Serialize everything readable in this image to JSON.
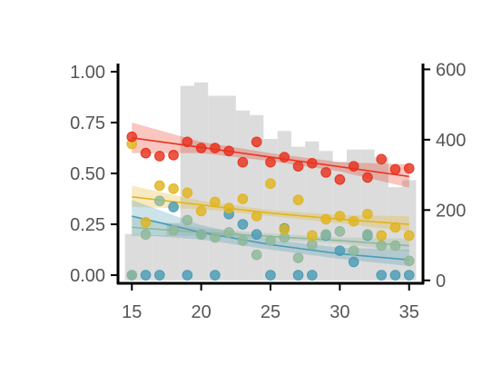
{
  "chart_data": {
    "type": "scatter",
    "title": "",
    "xlabel": "",
    "ylabel": "",
    "y2label": "",
    "grid": false,
    "legend": "none",
    "xlim": [
      14,
      36
    ],
    "ylim": [
      -0.04,
      1.04
    ],
    "y2lim": [
      -8.3,
      616.5
    ],
    "x_ticks": [
      15,
      20,
      25,
      30,
      35
    ],
    "y_ticks": [
      0,
      0.25,
      0.5,
      0.75,
      1.0
    ],
    "y_tick_labels": [
      "0.00",
      "0.25",
      "0.50",
      "0.75",
      "1.00"
    ],
    "y2_ticks": [
      0,
      200,
      400,
      600
    ],
    "y2_tick_labels": [
      "0",
      "200",
      "400",
      "600"
    ],
    "histogram": {
      "axis": "right",
      "color": "#dcdcdc",
      "bin_edges": [
        14.5,
        15.5,
        16.5,
        17.5,
        18.5,
        19.5,
        20.5,
        21.5,
        22.5,
        23.5,
        24.5,
        25.5,
        26.5,
        27.5,
        28.5,
        29.5,
        30.5,
        31.5,
        32.5,
        33.5,
        34.5,
        35.5
      ],
      "counts": [
        132,
        128,
        128,
        163,
        553,
        563,
        525,
        525,
        483,
        470,
        402,
        425,
        380,
        395,
        368,
        337,
        372,
        372,
        350,
        265,
        285
      ]
    },
    "series": [
      {
        "color": "#e8331e",
        "points": [
          [
            15,
            0.68
          ],
          [
            16,
            0.6
          ],
          [
            17,
            0.585
          ],
          [
            18,
            0.59
          ],
          [
            19,
            0.655
          ],
          [
            20,
            0.625
          ],
          [
            21,
            0.625
          ],
          [
            22,
            0.61
          ],
          [
            23,
            0.555
          ],
          [
            24,
            0.655
          ],
          [
            25,
            0.555
          ],
          [
            26,
            0.58
          ],
          [
            27,
            0.535
          ],
          [
            28,
            0.55
          ],
          [
            29,
            0.505
          ],
          [
            30,
            0.47
          ],
          [
            31,
            0.535
          ],
          [
            32,
            0.48
          ],
          [
            33,
            0.57
          ],
          [
            34,
            0.52
          ],
          [
            35,
            0.525
          ]
        ],
        "fit": [
          [
            15,
            0.675
          ],
          [
            20,
            0.628
          ],
          [
            25,
            0.58
          ],
          [
            30,
            0.533
          ],
          [
            35,
            0.485
          ]
        ],
        "band": [
          [
            15,
            0.6,
            0.75
          ],
          [
            20,
            0.6,
            0.655
          ],
          [
            25,
            0.56,
            0.6
          ],
          [
            30,
            0.51,
            0.555
          ],
          [
            35,
            0.43,
            0.545
          ]
        ]
      },
      {
        "color": "#e1b41e",
        "points": [
          [
            15,
            0.645
          ],
          [
            16,
            0.26
          ],
          [
            17,
            0.44
          ],
          [
            18,
            0.425
          ],
          [
            19,
            0.405
          ],
          [
            20,
            0.315
          ],
          [
            21,
            0.36
          ],
          [
            22,
            0.33
          ],
          [
            23,
            0.375
          ],
          [
            24,
            0.29
          ],
          [
            25,
            0.45
          ],
          [
            26,
            0.225
          ],
          [
            27,
            0.37
          ],
          [
            28,
            0.195
          ],
          [
            29,
            0.275
          ],
          [
            30,
            0.29
          ],
          [
            31,
            0.265
          ],
          [
            32,
            0.3
          ],
          [
            33,
            0.195
          ],
          [
            34,
            0.235
          ],
          [
            35,
            0.195
          ]
        ],
        "fit": [
          [
            15,
            0.385
          ],
          [
            20,
            0.345
          ],
          [
            25,
            0.305
          ],
          [
            30,
            0.275
          ],
          [
            35,
            0.25
          ]
        ],
        "band": [
          [
            15,
            0.335,
            0.44
          ],
          [
            20,
            0.325,
            0.365
          ],
          [
            25,
            0.29,
            0.32
          ],
          [
            30,
            0.255,
            0.295
          ],
          [
            35,
            0.215,
            0.29
          ]
        ]
      },
      {
        "color": "#8fb899",
        "points": [
          [
            15,
            0.0
          ],
          [
            16,
            0.2
          ],
          [
            17,
            0.365
          ],
          [
            18,
            0.22
          ],
          [
            19,
            0.27
          ],
          [
            20,
            0.2
          ],
          [
            21,
            0.185
          ],
          [
            22,
            0.21
          ],
          [
            23,
            0.17
          ],
          [
            24,
            0.1
          ],
          [
            25,
            0.17
          ],
          [
            26,
            0.185
          ],
          [
            27,
            0.085
          ],
          [
            28,
            0.15
          ],
          [
            29,
            0.2
          ],
          [
            30,
            0.215
          ],
          [
            31,
            0.12
          ],
          [
            32,
            0.2
          ],
          [
            33,
            0.145
          ],
          [
            34,
            0.145
          ],
          [
            35,
            0.07
          ]
        ],
        "fit": [
          [
            15,
            0.235
          ],
          [
            20,
            0.21
          ],
          [
            25,
            0.19
          ],
          [
            30,
            0.17
          ],
          [
            35,
            0.145
          ]
        ],
        "band": [
          [
            15,
            0.19,
            0.285
          ],
          [
            20,
            0.195,
            0.23
          ],
          [
            25,
            0.175,
            0.205
          ],
          [
            30,
            0.155,
            0.185
          ],
          [
            35,
            0.115,
            0.18
          ]
        ]
      },
      {
        "color": "#4a9cb5",
        "points": [
          [
            15,
            0.0
          ],
          [
            16,
            0.0
          ],
          [
            17,
            0.0
          ],
          [
            18,
            0.335
          ],
          [
            19,
            0.0
          ],
          [
            20,
            0.2
          ],
          [
            21,
            0.0
          ],
          [
            22,
            0.3
          ],
          [
            23,
            0.25
          ],
          [
            24,
            0.2
          ],
          [
            25,
            0.0
          ],
          [
            26,
            0.23
          ],
          [
            27,
            0.0
          ],
          [
            28,
            0.0
          ],
          [
            29,
            0.195
          ],
          [
            30,
            0.12
          ],
          [
            31,
            0.065
          ],
          [
            32,
            0.195
          ],
          [
            33,
            0.0
          ],
          [
            34,
            0.0
          ],
          [
            35,
            0.0
          ]
        ],
        "fit": [
          [
            15,
            0.29
          ],
          [
            20,
            0.21
          ],
          [
            25,
            0.15
          ],
          [
            30,
            0.105
          ],
          [
            35,
            0.075
          ]
        ],
        "band": [
          [
            15,
            0.2,
            0.37
          ],
          [
            20,
            0.175,
            0.245
          ],
          [
            25,
            0.125,
            0.175
          ],
          [
            30,
            0.08,
            0.135
          ],
          [
            35,
            0.045,
            0.125
          ]
        ]
      }
    ]
  }
}
